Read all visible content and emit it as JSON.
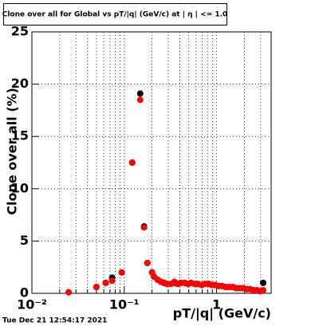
{
  "chart_data": {
    "type": "scatter",
    "title": "Clone  over all for Global vs pT/|q| (GeV/c) at | η | <= 1.0",
    "xlabel": "pT/|q| (GeV/c)",
    "ylabel": "Clone  over all (%)",
    "timestamp": "Tue Dec 21 12:54:17 2021",
    "xlog": true,
    "grid": true,
    "xlim": [
      0.01,
      3.9
    ],
    "ylim": [
      0,
      25
    ],
    "yticks": [
      0,
      5,
      10,
      15,
      20,
      25
    ],
    "xticks": [
      {
        "value": 0.01,
        "label": "10⁻²"
      },
      {
        "value": 0.1,
        "label": "10⁻¹"
      },
      1
    ],
    "xminorticks": [
      0.02,
      0.03,
      0.04,
      0.05,
      0.06,
      0.07,
      0.08,
      0.09,
      0.2,
      0.3,
      0.4,
      0.5,
      0.6,
      0.7,
      0.8,
      0.9,
      2,
      3
    ],
    "x": [
      0.025,
      0.05,
      0.063,
      0.074,
      0.094,
      0.122,
      0.149,
      0.164,
      0.178,
      0.2,
      0.21,
      0.23,
      0.25,
      0.27,
      0.29,
      0.32,
      0.35,
      0.38,
      0.41,
      0.45,
      0.49,
      0.53,
      0.58,
      0.63,
      0.69,
      0.75,
      0.82,
      0.89,
      0.97,
      1.06,
      1.15,
      1.26,
      1.37,
      1.5,
      1.63,
      1.78,
      1.94,
      2.11,
      2.3,
      2.5,
      2.73,
      2.97,
      3.2
    ],
    "series": [
      {
        "color": "#000000",
        "values": [
          0.1,
          0.6,
          1.0,
          1.5,
          2.0,
          12.5,
          19.1,
          6.4,
          2.9,
          2.0,
          1.6,
          1.3,
          1.1,
          1.0,
          0.9,
          0.9,
          1.0,
          0.9,
          1.0,
          1.0,
          0.9,
          1.0,
          0.9,
          0.9,
          0.8,
          0.9,
          0.9,
          0.8,
          0.8,
          0.7,
          0.7,
          0.6,
          0.6,
          0.6,
          0.5,
          0.5,
          0.5,
          0.4,
          0.4,
          0.3,
          0.3,
          0.2,
          1.0
        ]
      },
      {
        "color": "#ff0000",
        "values": [
          0.1,
          0.6,
          1.0,
          1.2,
          2.0,
          12.5,
          18.5,
          6.3,
          2.9,
          2.0,
          1.6,
          1.3,
          1.1,
          1.0,
          0.9,
          0.9,
          1.1,
          0.9,
          1.0,
          1.0,
          0.9,
          1.0,
          0.9,
          0.9,
          0.8,
          0.9,
          0.9,
          0.8,
          0.8,
          0.7,
          0.7,
          0.6,
          0.6,
          0.6,
          0.5,
          0.5,
          0.5,
          0.4,
          0.4,
          0.3,
          0.3,
          0.2,
          0.3
        ]
      }
    ]
  }
}
